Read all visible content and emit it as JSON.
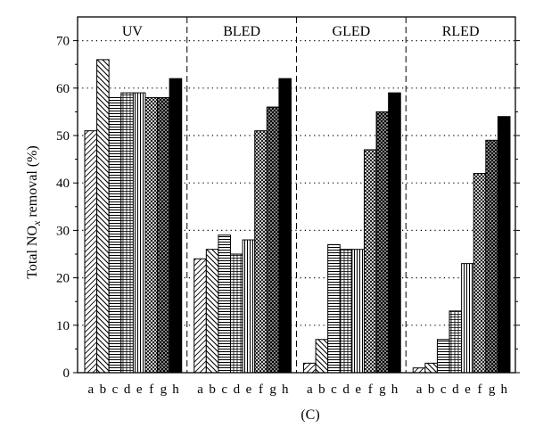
{
  "chart_data": {
    "type": "bar",
    "title": "",
    "ylabel": "Total NOx removal (%)",
    "ylabel_parts": {
      "before": "Total NO",
      "subscript": "x",
      "after": " removal (%)"
    },
    "xlabel": "",
    "caption": "(C)",
    "ylim": [
      0,
      75
    ],
    "yticks": [
      0,
      10,
      20,
      30,
      40,
      50,
      60,
      70
    ],
    "grid": "horizontal dotted",
    "categories": [
      "a",
      "b",
      "c",
      "d",
      "e",
      "f",
      "g",
      "h"
    ],
    "groups": [
      {
        "name": "UV",
        "values": [
          51,
          66,
          58,
          59,
          59,
          58,
          58,
          62
        ]
      },
      {
        "name": "BLED",
        "values": [
          24,
          26,
          29,
          25,
          28,
          51,
          56,
          62
        ]
      },
      {
        "name": "GLED",
        "values": [
          2,
          7,
          27,
          26,
          26,
          47,
          55,
          59
        ]
      },
      {
        "name": "RLED",
        "values": [
          1,
          2,
          7,
          13,
          23,
          42,
          49,
          54
        ]
      }
    ]
  }
}
